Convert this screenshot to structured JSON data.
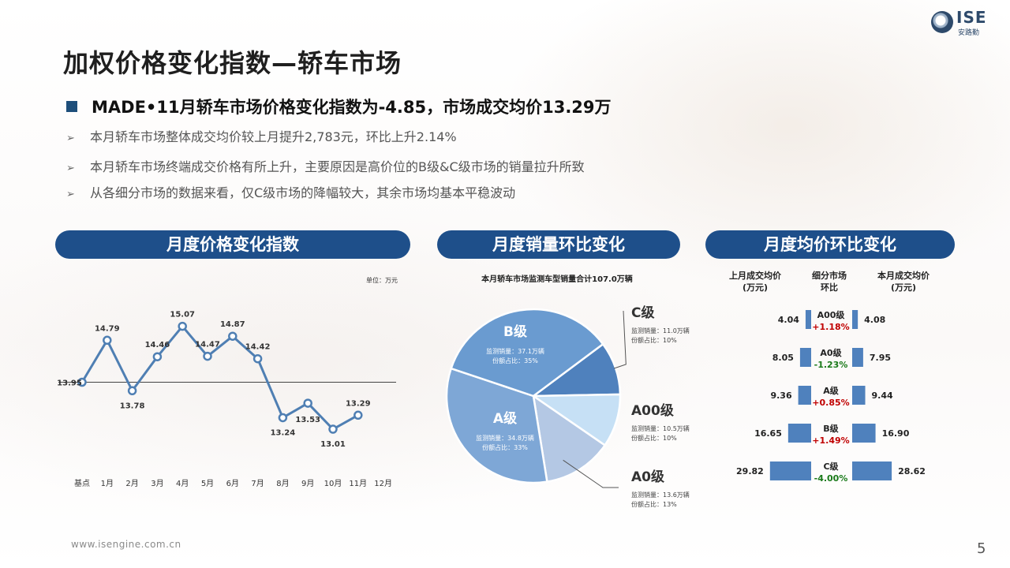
{
  "logo": {
    "text": "ISE",
    "subtext": "安路勤"
  },
  "title": "加权价格变化指数—轿车市场",
  "headline": "MADE•11月轿车市场价格变化指数为-4.85，市场成交均价13.29万",
  "bullets": [
    "本月轿车市场整体成交均价较上月提升2,783元，环比上升2.14%",
    "本月轿车市场终端成交价格有所上升，主要原因是高价位的B级&C级市场的销量拉升所致",
    "从各细分市场的数据来看，仅C级市场的降幅较大，其余市场均基本平稳波动"
  ],
  "panels": {
    "p1": "月度价格变化指数",
    "p2": "月度销量环比变化",
    "p3": "月度均价环比变化"
  },
  "colors": {
    "accent": "#1e4f8a",
    "line": "#4f7fb3",
    "positive": "#c00000",
    "negative": "#1a7a1a",
    "bar": "#4f81bd"
  },
  "chart_data": [
    {
      "type": "line",
      "unit_label": "单位：万元",
      "categories": [
        "基点",
        "1月",
        "2月",
        "3月",
        "4月",
        "5月",
        "6月",
        "7月",
        "8月",
        "9月",
        "10月",
        "11月",
        "12月"
      ],
      "values": [
        13.95,
        14.79,
        13.78,
        14.46,
        15.07,
        14.47,
        14.87,
        14.42,
        13.24,
        13.53,
        13.01,
        13.29,
        null
      ],
      "baseline": 13.95,
      "ylim": [
        12.6,
        15.6
      ],
      "grid": false
    },
    {
      "type": "pie",
      "title": "本月轿车市场监测车型销量合计107.0万辆",
      "slices": [
        {
          "name": "C级",
          "sales": "监测销量：11.0万辆",
          "share_text": "份额占比：10%",
          "share": 10,
          "color": "#4f81bd"
        },
        {
          "name": "A00级",
          "sales": "监测销量：10.5万辆",
          "share_text": "份额占比：10%",
          "share": 10,
          "color": "#c6e0f5"
        },
        {
          "name": "A0级",
          "sales": "监测销量：13.6万辆",
          "share_text": "份额占比：13%",
          "share": 13,
          "color": "#b4c8e4"
        },
        {
          "name": "A级",
          "sales": "监测销量：34.8万辆",
          "share_text": "份额占比：33%",
          "share": 33,
          "color": "#7ea7d6"
        },
        {
          "name": "B级",
          "sales": "监测销量：37.1万辆",
          "share_text": "份额占比：35%",
          "share": 35,
          "color": "#6a9bd0"
        }
      ]
    },
    {
      "type": "bar",
      "headers": {
        "prev": "上月成交均价",
        "prev_unit": "(万元)",
        "mid": "细分市场",
        "mid2": "环比",
        "curr": "本月成交均价",
        "curr_unit": "(万元)"
      },
      "rows": [
        {
          "segment": "A00级",
          "prev": 4.04,
          "curr": 4.08,
          "change": "+1.18%",
          "positive": true
        },
        {
          "segment": "A0级",
          "prev": 8.05,
          "curr": 7.95,
          "change": "-1.23%",
          "positive": false
        },
        {
          "segment": "A级",
          "prev": 9.36,
          "curr": 9.44,
          "change": "+0.85%",
          "positive": true
        },
        {
          "segment": "B级",
          "prev": 16.65,
          "curr": 16.9,
          "change": "+1.49%",
          "positive": true
        },
        {
          "segment": "C级",
          "prev": 29.82,
          "curr": 28.62,
          "change": "-4.00%",
          "positive": false
        }
      ]
    }
  ],
  "footer": {
    "website": "www.isengine.com.cn",
    "page": "5"
  }
}
